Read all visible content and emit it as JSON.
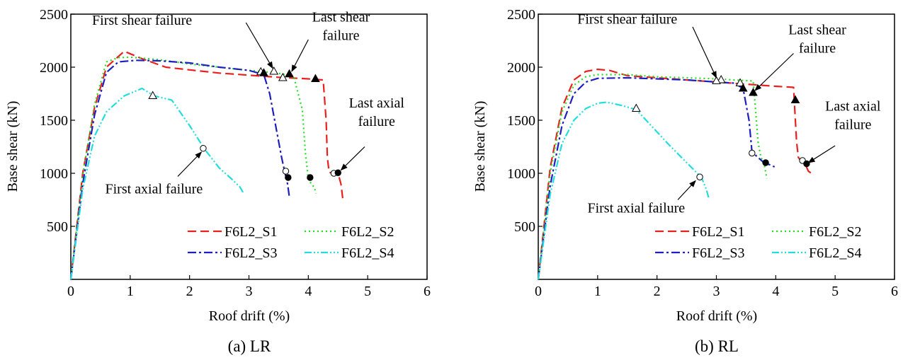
{
  "chart_data": [
    {
      "id": "lr",
      "type": "line",
      "caption": "(a) LR",
      "xlabel": "Roof drift (%)",
      "ylabel": "Base shear (kN)",
      "xlim": [
        0,
        6
      ],
      "ylim": [
        0,
        2500
      ],
      "xticks": [
        0,
        1,
        2,
        3,
        4,
        5,
        6
      ],
      "yticks": [
        500,
        1000,
        1500,
        2000,
        2500
      ],
      "legend_position": "bottom-right",
      "series": [
        {
          "name": "F6L2_S1",
          "color": "#e8201e",
          "dash": "12,6",
          "x": [
            0,
            0.2,
            0.4,
            0.6,
            0.9,
            1.2,
            1.6,
            2.0,
            2.5,
            3.0,
            3.5,
            4.0,
            4.25,
            4.3,
            4.32,
            4.35,
            4.4,
            4.5,
            4.55,
            4.58
          ],
          "y": [
            0,
            1000,
            1620,
            2000,
            2150,
            2080,
            2000,
            1975,
            1945,
            1925,
            1905,
            1890,
            1880,
            1500,
            1150,
            1010,
            1000,
            1000,
            900,
            760
          ]
        },
        {
          "name": "F6L2_S2",
          "color": "#22dd22",
          "dash": "2,4",
          "x": [
            0,
            0.2,
            0.4,
            0.6,
            0.8,
            1.0,
            1.5,
            2.0,
            2.5,
            3.0,
            3.4,
            3.75,
            3.9,
            3.95,
            4.0,
            4.05,
            4.1,
            4.13
          ],
          "y": [
            0,
            980,
            1650,
            2050,
            2090,
            2095,
            2070,
            2030,
            2000,
            1970,
            1950,
            1920,
            1600,
            1200,
            950,
            900,
            870,
            810
          ]
        },
        {
          "name": "F6L2_S3",
          "color": "#1f1fbf",
          "dash": "12,4,3,4",
          "x": [
            0,
            0.2,
            0.4,
            0.6,
            0.8,
            1.1,
            1.5,
            2.0,
            2.5,
            3.0,
            3.25,
            3.35,
            3.45,
            3.55,
            3.6,
            3.65,
            3.68
          ],
          "y": [
            0,
            900,
            1550,
            1950,
            2050,
            2065,
            2060,
            2040,
            2000,
            1970,
            1930,
            1750,
            1450,
            1150,
            1020,
            900,
            780
          ]
        },
        {
          "name": "F6L2_S4",
          "color": "#22dddd",
          "dash": "10,3,2,3,2,3",
          "x": [
            0,
            0.2,
            0.4,
            0.6,
            0.9,
            1.2,
            1.4,
            1.7,
            2.0,
            2.25,
            2.5,
            2.7,
            2.85,
            2.9
          ],
          "y": [
            0,
            850,
            1350,
            1580,
            1730,
            1800,
            1730,
            1690,
            1450,
            1230,
            1050,
            950,
            870,
            820
          ]
        }
      ],
      "markers": [
        {
          "series": "F6L2_S1",
          "kind": "triangle-open",
          "x": 3.57,
          "y": 1900
        },
        {
          "series": "F6L2_S1",
          "kind": "triangle-filled",
          "x": 4.12,
          "y": 1890
        },
        {
          "series": "F6L2_S1",
          "kind": "circle-open",
          "x": 4.43,
          "y": 1000
        },
        {
          "series": "F6L2_S1",
          "kind": "circle-filled",
          "x": 4.5,
          "y": 1005
        },
        {
          "series": "F6L2_S2",
          "kind": "triangle-open",
          "x": 3.42,
          "y": 1960
        },
        {
          "series": "F6L2_S2",
          "kind": "triangle-filled",
          "x": 3.68,
          "y": 1935
        },
        {
          "series": "F6L2_S2",
          "kind": "circle-filled",
          "x": 4.03,
          "y": 960
        },
        {
          "series": "F6L2_S3",
          "kind": "triangle-open",
          "x": 3.2,
          "y": 1955
        },
        {
          "series": "F6L2_S3",
          "kind": "triangle-filled",
          "x": 3.25,
          "y": 1945
        },
        {
          "series": "F6L2_S3",
          "kind": "circle-open",
          "x": 3.62,
          "y": 1020
        },
        {
          "series": "F6L2_S3",
          "kind": "circle-filled",
          "x": 3.66,
          "y": 960
        },
        {
          "series": "F6L2_S4",
          "kind": "triangle-open",
          "x": 1.38,
          "y": 1730
        },
        {
          "series": "F6L2_S4",
          "kind": "circle-open",
          "x": 2.23,
          "y": 1235
        }
      ],
      "annotations": [
        {
          "text": [
            "First shear failure"
          ],
          "label_pos": [
            1.2,
            2400
          ],
          "arrow_from": [
            2.95,
            2420
          ],
          "arrow_to": [
            3.4,
            1990
          ]
        },
        {
          "text": [
            "Last shear",
            "failure"
          ],
          "label_pos": [
            4.55,
            2430
          ],
          "arrow_from": [
            4.0,
            2260
          ],
          "arrow_to": [
            3.72,
            1960
          ]
        },
        {
          "text": [
            "Last axial",
            "failure"
          ],
          "label_pos": [
            5.15,
            1620
          ],
          "arrow_from": [
            4.95,
            1250
          ],
          "arrow_to": [
            4.55,
            1030
          ]
        },
        {
          "text": [
            "First axial failure"
          ],
          "label_pos": [
            1.4,
            810
          ],
          "arrow_from": [
            1.8,
            970
          ],
          "arrow_to": [
            2.2,
            1200
          ]
        }
      ]
    },
    {
      "id": "rl",
      "type": "line",
      "caption": "(b) RL",
      "xlabel": "Roof drift (%)",
      "ylabel": "Base shear (kN)",
      "xlim": [
        0,
        6
      ],
      "ylim": [
        0,
        2500
      ],
      "xticks": [
        0,
        1,
        2,
        3,
        4,
        5,
        6
      ],
      "yticks": [
        500,
        1000,
        1500,
        2000,
        2500
      ],
      "legend_position": "bottom-right",
      "series": [
        {
          "name": "F6L2_S1",
          "color": "#e8201e",
          "dash": "12,6",
          "x": [
            0,
            0.2,
            0.4,
            0.6,
            0.8,
            1.0,
            1.2,
            1.5,
            2.0,
            2.5,
            3.0,
            3.5,
            4.0,
            4.3,
            4.32,
            4.35,
            4.38,
            4.42,
            4.5,
            4.55,
            4.6
          ],
          "y": [
            0,
            1050,
            1620,
            1880,
            1960,
            1980,
            1970,
            1920,
            1900,
            1880,
            1860,
            1840,
            1820,
            1810,
            1600,
            1300,
            1150,
            1120,
            1080,
            1020,
            1000
          ]
        },
        {
          "name": "F6L2_S2",
          "color": "#22dd22",
          "dash": "2,4",
          "x": [
            0,
            0.2,
            0.4,
            0.6,
            0.8,
            1.0,
            1.5,
            2.0,
            2.5,
            3.0,
            3.3,
            3.62,
            3.66,
            3.7,
            3.75,
            3.8,
            3.85
          ],
          "y": [
            0,
            1000,
            1580,
            1830,
            1910,
            1930,
            1930,
            1910,
            1900,
            1890,
            1880,
            1870,
            1600,
            1300,
            1150,
            1100,
            950
          ]
        },
        {
          "name": "F6L2_S3",
          "color": "#1f1fbf",
          "dash": "12,4,3,4",
          "x": [
            0,
            0.2,
            0.4,
            0.6,
            0.8,
            1.0,
            1.5,
            2.0,
            2.5,
            3.0,
            3.3,
            3.45,
            3.55,
            3.6,
            3.7,
            3.8,
            3.9,
            3.98
          ],
          "y": [
            0,
            880,
            1450,
            1750,
            1860,
            1895,
            1900,
            1890,
            1880,
            1860,
            1850,
            1800,
            1500,
            1200,
            1150,
            1100,
            1080,
            1060
          ]
        },
        {
          "name": "F6L2_S4",
          "color": "#22dddd",
          "dash": "10,3,2,3,2,3",
          "x": [
            0,
            0.2,
            0.4,
            0.6,
            0.8,
            1.0,
            1.15,
            1.4,
            1.65,
            1.9,
            2.2,
            2.5,
            2.75,
            2.83,
            2.87
          ],
          "y": [
            0,
            800,
            1280,
            1500,
            1610,
            1660,
            1670,
            1640,
            1600,
            1450,
            1270,
            1100,
            960,
            850,
            770
          ]
        }
      ],
      "markers": [
        {
          "series": "F6L2_S1",
          "kind": "triangle-filled",
          "x": 4.33,
          "y": 1690
        },
        {
          "series": "F6L2_S1",
          "kind": "circle-open",
          "x": 4.45,
          "y": 1120
        },
        {
          "series": "F6L2_S1",
          "kind": "circle-filled",
          "x": 4.52,
          "y": 1090
        },
        {
          "series": "F6L2_S2",
          "kind": "triangle-open",
          "x": 3.08,
          "y": 1880
        },
        {
          "series": "F6L2_S2",
          "kind": "triangle-open",
          "x": 3.4,
          "y": 1850
        },
        {
          "series": "F6L2_S2",
          "kind": "triangle-filled",
          "x": 3.62,
          "y": 1760
        },
        {
          "series": "F6L2_S3",
          "kind": "triangle-open",
          "x": 3.0,
          "y": 1870
        },
        {
          "series": "F6L2_S3",
          "kind": "triangle-filled",
          "x": 3.45,
          "y": 1800
        },
        {
          "series": "F6L2_S3",
          "kind": "circle-open",
          "x": 3.6,
          "y": 1190
        },
        {
          "series": "F6L2_S3",
          "kind": "circle-filled",
          "x": 3.83,
          "y": 1100
        },
        {
          "series": "F6L2_S4",
          "kind": "triangle-open",
          "x": 1.65,
          "y": 1610
        },
        {
          "series": "F6L2_S4",
          "kind": "circle-open",
          "x": 2.72,
          "y": 965
        }
      ],
      "annotations": [
        {
          "text": [
            "First shear failure"
          ],
          "label_pos": [
            1.5,
            2410
          ],
          "arrow_from": [
            2.6,
            2380
          ],
          "arrow_to": [
            3.0,
            1900
          ]
        },
        {
          "text": [
            "Last shear",
            "failure"
          ],
          "label_pos": [
            4.7,
            2310
          ],
          "arrow_from": [
            4.3,
            2130
          ],
          "arrow_to": [
            3.65,
            1780
          ]
        },
        {
          "text": [
            "Last axial",
            "failure"
          ],
          "label_pos": [
            5.3,
            1590
          ],
          "arrow_from": [
            5.0,
            1260
          ],
          "arrow_to": [
            4.55,
            1100
          ]
        },
        {
          "text": [
            "First axial failure"
          ],
          "label_pos": [
            1.65,
            630
          ],
          "arrow_from": [
            2.35,
            750
          ],
          "arrow_to": [
            2.65,
            930
          ]
        }
      ]
    }
  ]
}
